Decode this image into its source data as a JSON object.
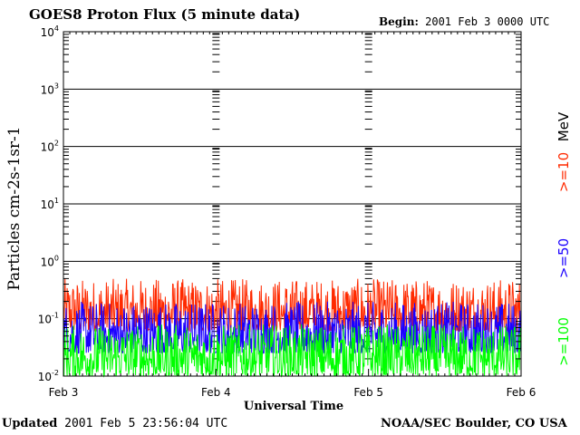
{
  "header": {
    "title": "GOES8 Proton Flux (5 minute data)",
    "begin_label": "Begin:",
    "begin_value": "2001 Feb 3 0000 UTC"
  },
  "footer": {
    "updated_label": "Updated",
    "updated_value": "2001 Feb  5 23:56:04 UTC",
    "credit": "NOAA/SEC Boulder, CO USA"
  },
  "chart_data": {
    "type": "line",
    "title": "GOES8 Proton Flux (5 minute data)",
    "xlabel": "Universal Time",
    "ylabel": "Particles cm-2s-1sr-1",
    "y_scale": "log",
    "ylim": [
      0.01,
      10000
    ],
    "y_ticks": [
      {
        "base": "10",
        "exp": "-2"
      },
      {
        "base": "10",
        "exp": "-1"
      },
      {
        "base": "10",
        "exp": "0"
      },
      {
        "base": "10",
        "exp": "1"
      },
      {
        "base": "10",
        "exp": "2"
      },
      {
        "base": "10",
        "exp": "3"
      },
      {
        "base": "10",
        "exp": "4"
      }
    ],
    "x_ticks": [
      "Feb 3",
      "Feb 4",
      "Feb 5",
      "Feb 6"
    ],
    "xlim": [
      "2001-02-03 00:00",
      "2001-02-06 00:00"
    ],
    "grid": true,
    "legend_unit": "MeV",
    "legend_position": "right-vertical",
    "series": [
      {
        "name": ">=10",
        "color": "#ff2a00",
        "typical_range": [
          0.06,
          0.5
        ]
      },
      {
        "name": ">=50",
        "color": "#1a00ff",
        "typical_range": [
          0.025,
          0.2
        ]
      },
      {
        "name": ">=100",
        "color": "#00ff00",
        "typical_range": [
          0.01,
          0.08
        ]
      }
    ]
  }
}
